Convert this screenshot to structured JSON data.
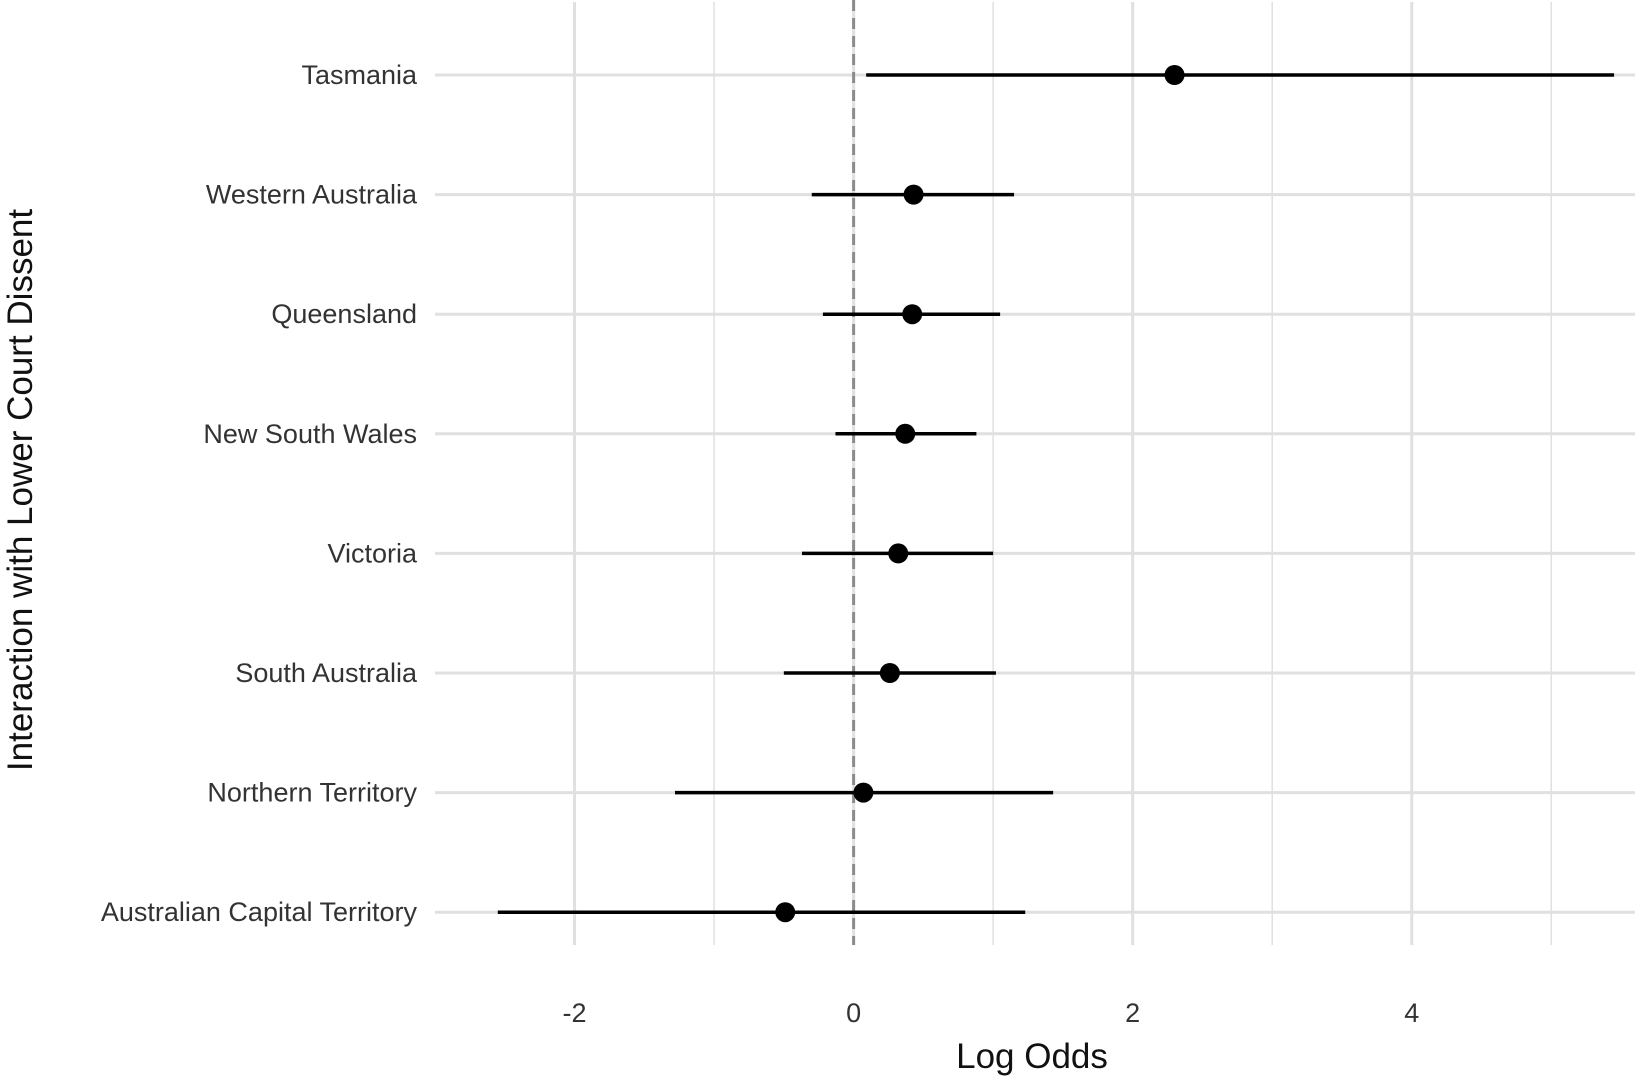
{
  "chart_data": {
    "type": "scatter",
    "subtype": "coefficient-plot-with-intervals",
    "title": "",
    "xlabel": "Log Odds",
    "ylabel": "Interaction with Lower Court Dissent",
    "xlim": [
      -3.0,
      5.6
    ],
    "x_ticks": [
      {
        "value": -2,
        "label": "-2"
      },
      {
        "value": 0,
        "label": "0"
      },
      {
        "value": 2,
        "label": "2"
      },
      {
        "value": 4,
        "label": "4"
      }
    ],
    "x_minor_grid": [
      -1,
      1,
      3,
      5
    ],
    "reference_line": {
      "x": 0,
      "style": "dashed",
      "color": "#8c8c8c"
    },
    "grid": true,
    "legend": "none",
    "colors": {
      "point": "#000000",
      "interval": "#000000",
      "grid": "#e0e0e0"
    },
    "categories": [
      "Tasmania",
      "Western Australia",
      "Queensland",
      "New South Wales",
      "Victoria",
      "South Australia",
      "Northern Territory",
      "Australian Capital Territory"
    ],
    "points": [
      {
        "category": "Tasmania",
        "estimate": 2.3,
        "lower": 0.09,
        "upper": 5.45
      },
      {
        "category": "Western Australia",
        "estimate": 0.43,
        "lower": -0.3,
        "upper": 1.15
      },
      {
        "category": "Queensland",
        "estimate": 0.42,
        "lower": -0.22,
        "upper": 1.05
      },
      {
        "category": "New South Wales",
        "estimate": 0.37,
        "lower": -0.13,
        "upper": 0.88
      },
      {
        "category": "Victoria",
        "estimate": 0.32,
        "lower": -0.37,
        "upper": 1.0
      },
      {
        "category": "South Australia",
        "estimate": 0.26,
        "lower": -0.5,
        "upper": 1.02
      },
      {
        "category": "Northern Territory",
        "estimate": 0.07,
        "lower": -1.28,
        "upper": 1.43
      },
      {
        "category": "Australian Capital Territory",
        "estimate": -0.49,
        "lower": -2.55,
        "upper": 1.23
      }
    ]
  }
}
